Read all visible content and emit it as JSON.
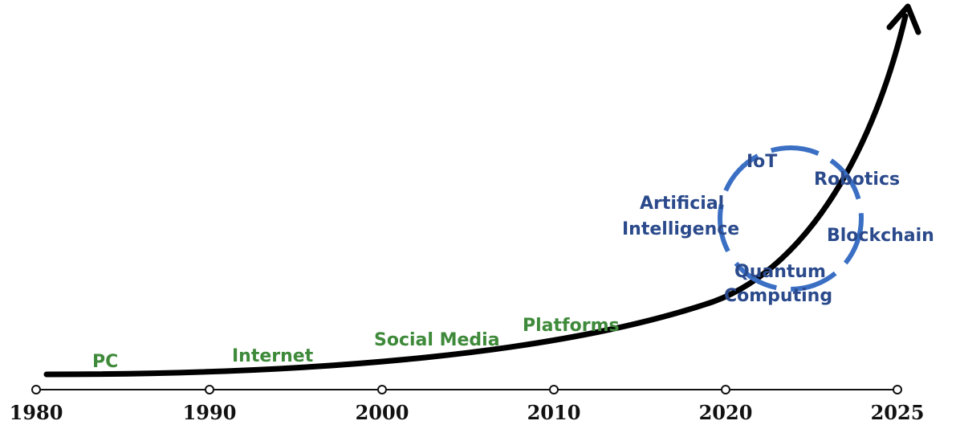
{
  "timeline": {
    "years": [
      "1980",
      "1990",
      "2000",
      "2010",
      "2020",
      "2025"
    ]
  },
  "eras": {
    "pc": "PC",
    "internet": "Internet",
    "social_media": "Social Media",
    "platforms": "Platforms"
  },
  "emerging": {
    "iot": "IoT",
    "robotics": "Robotics",
    "ai_line1": "Artificial",
    "ai_line2": "Intelligence",
    "blockchain": "Blockchain",
    "quantum_line1": "Quantum",
    "quantum_line2": "Computing"
  },
  "colors": {
    "era_text": "#3e8a3a",
    "emerging_text": "#2b4a8c",
    "circle": "#3a6fc4",
    "curve": "#000000"
  }
}
